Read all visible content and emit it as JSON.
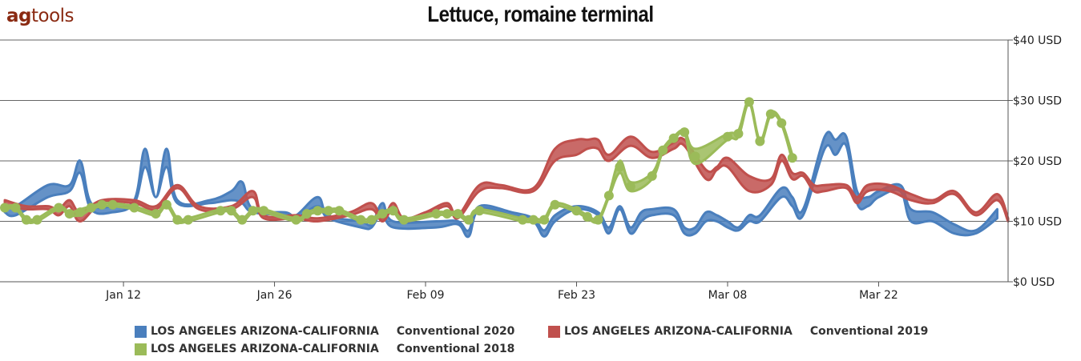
{
  "logo": {
    "part1": "ag",
    "part2": "tools"
  },
  "chart_data": {
    "type": "area",
    "title": "Lettuce, romaine terminal",
    "xlabel": "",
    "ylabel": "",
    "x_axis": {
      "type": "date",
      "range": [
        "2020-01-01",
        "2020-04-03"
      ],
      "ticks": [
        "2020-01-12",
        "2020-01-26",
        "2020-02-09",
        "2020-02-23",
        "2020-03-08",
        "2020-03-22"
      ],
      "tick_labels": [
        "Jan 12",
        "Jan 26",
        "Feb 09",
        "Feb 23",
        "Mar 08",
        "Mar 22"
      ]
    },
    "y_axis": {
      "position": "right",
      "ylim": [
        0,
        40
      ],
      "ticks": [
        0,
        10,
        20,
        30,
        40
      ],
      "tick_labels": [
        "$0 USD",
        "$10 USD",
        "$20 USD",
        "$30 USD",
        "$40 USD"
      ]
    },
    "grid": true,
    "legend_position": "bottom",
    "series": [
      {
        "name": "LOS ANGELES ARIZONA-CALIFORNIA",
        "subtitle": "Conventional 2020",
        "color": "#4a7fbd",
        "markers": false,
        "points": [
          [
            "2020-01-01",
            11.5,
            12.5
          ],
          [
            "2020-01-02",
            11.0,
            12.5
          ],
          [
            "2020-01-05",
            14.0,
            16.0
          ],
          [
            "2020-01-07",
            15.0,
            16.0
          ],
          [
            "2020-01-08",
            18.0,
            20.0
          ],
          [
            "2020-01-09",
            12.0,
            13.0
          ],
          [
            "2020-01-11",
            11.5,
            12.5
          ],
          [
            "2020-01-13",
            13.0,
            13.5
          ],
          [
            "2020-01-14",
            19.0,
            22.0
          ],
          [
            "2020-01-15",
            14.0,
            14.0
          ],
          [
            "2020-01-16",
            19.0,
            22.0
          ],
          [
            "2020-01-17",
            13.0,
            13.5
          ],
          [
            "2020-01-20",
            13.0,
            13.5
          ],
          [
            "2020-01-22",
            13.5,
            15.0
          ],
          [
            "2020-01-23",
            13.0,
            16.5
          ],
          [
            "2020-01-24",
            11.5,
            12.0
          ],
          [
            "2020-01-27",
            11.0,
            11.5
          ],
          [
            "2020-01-28",
            10.5,
            11.0
          ],
          [
            "2020-01-30",
            12.5,
            14.0
          ],
          [
            "2020-01-31",
            10.5,
            11.0
          ],
          [
            "2020-02-03",
            9.0,
            10.0
          ],
          [
            "2020-02-04",
            9.0,
            9.5
          ],
          [
            "2020-02-05",
            11.5,
            13.0
          ],
          [
            "2020-02-06",
            9.0,
            10.0
          ],
          [
            "2020-02-10",
            9.0,
            10.0
          ],
          [
            "2020-02-12",
            9.5,
            10.0
          ],
          [
            "2020-02-13",
            7.5,
            8.5
          ],
          [
            "2020-02-14",
            12.0,
            12.5
          ],
          [
            "2020-02-17",
            11.0,
            11.5
          ],
          [
            "2020-02-19",
            10.0,
            10.5
          ],
          [
            "2020-02-20",
            7.5,
            8.5
          ],
          [
            "2020-02-21",
            10.0,
            11.0
          ],
          [
            "2020-02-23",
            12.0,
            12.5
          ],
          [
            "2020-02-25",
            11.0,
            11.5
          ],
          [
            "2020-02-26",
            8.0,
            9.0
          ],
          [
            "2020-02-27",
            12.0,
            12.5
          ],
          [
            "2020-02-28",
            8.0,
            9.0
          ],
          [
            "2020-02-29",
            10.0,
            11.5
          ],
          [
            "2020-03-01",
            11.0,
            12.0
          ],
          [
            "2020-03-03",
            11.0,
            12.0
          ],
          [
            "2020-03-04",
            8.0,
            9.0
          ],
          [
            "2020-03-05",
            8.0,
            9.0
          ],
          [
            "2020-03-06",
            10.0,
            11.5
          ],
          [
            "2020-03-07",
            10.0,
            11.0
          ],
          [
            "2020-03-08",
            9.0,
            10.0
          ],
          [
            "2020-03-09",
            8.5,
            9.0
          ],
          [
            "2020-03-10",
            10.0,
            11.0
          ],
          [
            "2020-03-11",
            10.0,
            11.0
          ],
          [
            "2020-03-13",
            14.0,
            15.5
          ],
          [
            "2020-03-14",
            12.5,
            14.0
          ],
          [
            "2020-03-15",
            11.0,
            12.0
          ],
          [
            "2020-03-17",
            22.0,
            24.0
          ],
          [
            "2020-03-18",
            21.0,
            23.5
          ],
          [
            "2020-03-19",
            22.5,
            24.0
          ],
          [
            "2020-03-20",
            13.0,
            15.0
          ],
          [
            "2020-03-21",
            12.5,
            14.0
          ],
          [
            "2020-03-22",
            14.0,
            15.0
          ],
          [
            "2020-03-24",
            15.0,
            16.0
          ],
          [
            "2020-03-25",
            10.0,
            12.0
          ],
          [
            "2020-03-27",
            10.0,
            11.5
          ],
          [
            "2020-03-29",
            8.0,
            9.5
          ],
          [
            "2020-03-31",
            8.0,
            8.5
          ],
          [
            "2020-04-02",
            10.5,
            12.0
          ]
        ]
      },
      {
        "name": "LOS ANGELES ARIZONA-CALIFORNIA",
        "subtitle": "Conventional 2019",
        "color": "#c0504d",
        "markers": false,
        "points": [
          [
            "2020-01-01",
            12.5,
            13.5
          ],
          [
            "2020-01-03",
            12.0,
            12.5
          ],
          [
            "2020-01-05",
            12.0,
            12.5
          ],
          [
            "2020-01-06",
            11.0,
            12.0
          ],
          [
            "2020-01-07",
            12.5,
            13.5
          ],
          [
            "2020-01-08",
            10.0,
            11.5
          ],
          [
            "2020-01-10",
            13.0,
            13.5
          ],
          [
            "2020-01-13",
            13.0,
            13.5
          ],
          [
            "2020-01-15",
            12.0,
            12.5
          ],
          [
            "2020-01-17",
            15.5,
            16.0
          ],
          [
            "2020-01-19",
            12.0,
            12.5
          ],
          [
            "2020-01-22",
            12.0,
            12.5
          ],
          [
            "2020-01-24",
            14.0,
            15.0
          ],
          [
            "2020-01-25",
            10.5,
            11.0
          ],
          [
            "2020-01-28",
            10.5,
            11.0
          ],
          [
            "2020-01-30",
            10.0,
            10.5
          ],
          [
            "2020-02-02",
            11.0,
            11.5
          ],
          [
            "2020-02-04",
            12.0,
            13.0
          ],
          [
            "2020-02-05",
            10.0,
            10.5
          ],
          [
            "2020-02-06",
            12.0,
            13.0
          ],
          [
            "2020-02-07",
            10.0,
            10.5
          ],
          [
            "2020-02-09",
            11.0,
            11.5
          ],
          [
            "2020-02-11",
            12.5,
            13.0
          ],
          [
            "2020-02-12",
            10.5,
            11.0
          ],
          [
            "2020-02-14",
            15.0,
            16.0
          ],
          [
            "2020-02-16",
            15.5,
            16.0
          ],
          [
            "2020-02-19",
            15.0,
            15.5
          ],
          [
            "2020-02-21",
            20.0,
            22.0
          ],
          [
            "2020-02-23",
            21.0,
            23.5
          ],
          [
            "2020-02-24",
            22.0,
            23.5
          ],
          [
            "2020-02-25",
            22.0,
            23.5
          ],
          [
            "2020-02-26",
            20.0,
            21.0
          ],
          [
            "2020-02-28",
            22.5,
            24.0
          ],
          [
            "2020-03-01",
            20.5,
            21.5
          ],
          [
            "2020-03-03",
            22.0,
            23.0
          ],
          [
            "2020-03-04",
            22.5,
            23.5
          ],
          [
            "2020-03-06",
            17.0,
            18.5
          ],
          [
            "2020-03-07",
            18.5,
            19.0
          ],
          [
            "2020-03-08",
            19.0,
            20.5
          ],
          [
            "2020-03-10",
            15.0,
            17.5
          ],
          [
            "2020-03-12",
            16.0,
            17.0
          ],
          [
            "2020-03-13",
            20.0,
            21.0
          ],
          [
            "2020-03-14",
            17.0,
            18.0
          ],
          [
            "2020-03-15",
            17.5,
            18.0
          ],
          [
            "2020-03-16",
            15.0,
            16.0
          ],
          [
            "2020-03-17",
            15.0,
            16.0
          ],
          [
            "2020-03-19",
            15.5,
            16.0
          ],
          [
            "2020-03-20",
            13.0,
            14.0
          ],
          [
            "2020-03-21",
            15.0,
            16.0
          ],
          [
            "2020-03-23",
            15.0,
            16.0
          ],
          [
            "2020-03-25",
            13.5,
            14.5
          ],
          [
            "2020-03-27",
            13.0,
            13.5
          ],
          [
            "2020-03-29",
            14.5,
            15.0
          ],
          [
            "2020-03-31",
            11.0,
            11.5
          ],
          [
            "2020-04-02",
            13.5,
            14.5
          ],
          [
            "2020-04-03",
            10.0,
            10.5
          ]
        ]
      },
      {
        "name": "LOS ANGELES ARIZONA-CALIFORNIA",
        "subtitle": "Conventional 2018",
        "color": "#9bbb59",
        "markers": true,
        "points": [
          [
            "2020-01-01",
            12.0,
            12.5
          ],
          [
            "2020-01-02",
            12.0,
            12.5
          ],
          [
            "2020-01-03",
            10.0,
            10.5
          ],
          [
            "2020-01-04",
            10.0,
            10.5
          ],
          [
            "2020-01-06",
            12.0,
            12.5
          ],
          [
            "2020-01-07",
            11.0,
            11.5
          ],
          [
            "2020-01-08",
            11.0,
            12.0
          ],
          [
            "2020-01-09",
            12.0,
            12.5
          ],
          [
            "2020-01-10",
            12.5,
            13.0
          ],
          [
            "2020-01-11",
            12.5,
            13.0
          ],
          [
            "2020-01-13",
            12.0,
            12.5
          ],
          [
            "2020-01-15",
            11.0,
            11.5
          ],
          [
            "2020-01-16",
            12.5,
            13.0
          ],
          [
            "2020-01-17",
            10.0,
            10.5
          ],
          [
            "2020-01-18",
            10.0,
            10.5
          ],
          [
            "2020-01-21",
            11.5,
            12.0
          ],
          [
            "2020-01-22",
            11.5,
            12.0
          ],
          [
            "2020-01-23",
            10.0,
            10.5
          ],
          [
            "2020-01-24",
            11.5,
            12.0
          ],
          [
            "2020-01-25",
            11.5,
            12.0
          ],
          [
            "2020-01-28",
            10.0,
            10.5
          ],
          [
            "2020-01-29",
            11.0,
            11.5
          ],
          [
            "2020-01-30",
            11.5,
            12.0
          ],
          [
            "2020-01-31",
            11.5,
            12.0
          ],
          [
            "2020-02-01",
            11.5,
            12.0
          ],
          [
            "2020-02-03",
            10.0,
            10.5
          ],
          [
            "2020-02-04",
            10.0,
            10.5
          ],
          [
            "2020-02-05",
            11.0,
            11.5
          ],
          [
            "2020-02-06",
            11.5,
            12.0
          ],
          [
            "2020-02-07",
            10.0,
            10.5
          ],
          [
            "2020-02-10",
            11.0,
            11.5
          ],
          [
            "2020-02-11",
            11.0,
            11.5
          ],
          [
            "2020-02-12",
            11.0,
            11.5
          ],
          [
            "2020-02-13",
            10.0,
            10.5
          ],
          [
            "2020-02-14",
            11.5,
            12.0
          ],
          [
            "2020-02-18",
            10.0,
            10.5
          ],
          [
            "2020-02-19",
            10.0,
            10.5
          ],
          [
            "2020-02-20",
            10.0,
            10.5
          ],
          [
            "2020-02-21",
            12.5,
            13.0
          ],
          [
            "2020-02-23",
            11.5,
            12.0
          ],
          [
            "2020-02-24",
            10.5,
            11.0
          ],
          [
            "2020-02-25",
            10.0,
            10.5
          ],
          [
            "2020-02-26",
            14.0,
            14.5
          ],
          [
            "2020-02-27",
            18.0,
            20.0
          ],
          [
            "2020-02-28",
            15.0,
            16.5
          ],
          [
            "2020-03-01",
            17.0,
            18.0
          ],
          [
            "2020-03-02",
            21.5,
            22.0
          ],
          [
            "2020-03-03",
            23.5,
            24.0
          ],
          [
            "2020-03-04",
            24.5,
            25.0
          ],
          [
            "2020-03-05",
            19.5,
            22.0
          ],
          [
            "2020-03-08",
            23.5,
            24.5
          ],
          [
            "2020-03-09",
            24.0,
            25.0
          ],
          [
            "2020-03-10",
            29.5,
            30.0
          ],
          [
            "2020-03-11",
            23.0,
            23.5
          ],
          [
            "2020-03-12",
            27.5,
            28.0
          ],
          [
            "2020-03-13",
            26.0,
            26.5
          ],
          [
            "2020-03-14",
            20.0,
            21.0
          ]
        ]
      }
    ]
  }
}
